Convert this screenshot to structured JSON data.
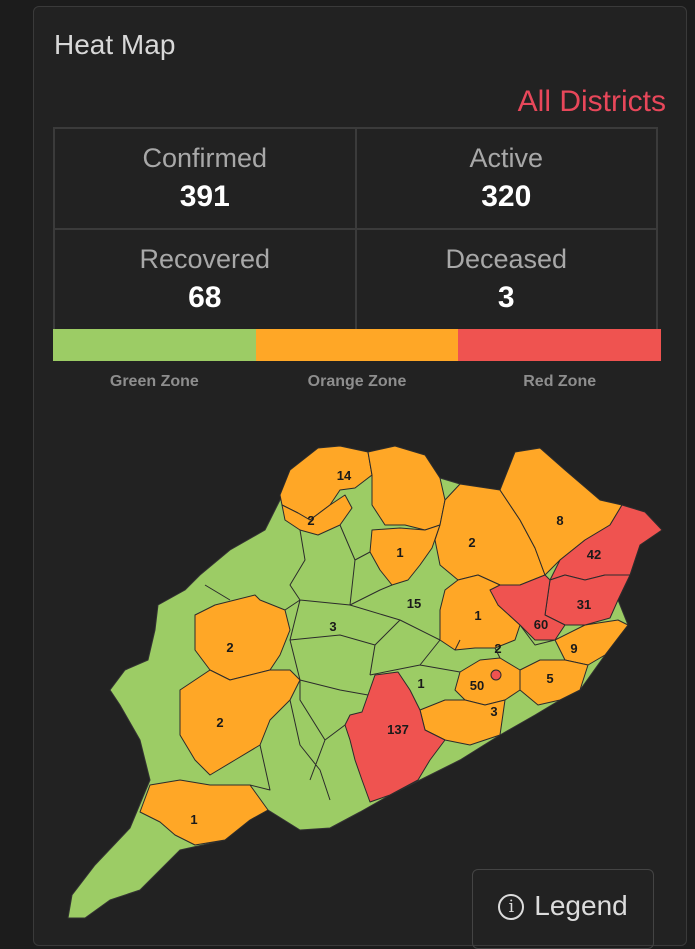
{
  "card": {
    "title": "Heat Map",
    "district_selector": "All Districts"
  },
  "stats": {
    "confirmed": {
      "label": "Confirmed",
      "value": "391"
    },
    "active": {
      "label": "Active",
      "value": "320"
    },
    "recovered": {
      "label": "Recovered",
      "value": "68"
    },
    "deceased": {
      "label": "Deceased",
      "value": "3"
    }
  },
  "zones": [
    {
      "label": "Green Zone",
      "color": "#9ccc65"
    },
    {
      "label": "Orange Zone",
      "color": "#ffa726"
    },
    {
      "label": "Red Zone",
      "color": "#ef5350"
    }
  ],
  "map": {
    "districts": [
      {
        "count": "14",
        "zone": "orange"
      },
      {
        "count": "2",
        "zone": "orange"
      },
      {
        "count": "1",
        "zone": "orange"
      },
      {
        "count": "2",
        "zone": "orange"
      },
      {
        "count": "8",
        "zone": "orange"
      },
      {
        "count": "42",
        "zone": "red"
      },
      {
        "count": "15",
        "zone": "green"
      },
      {
        "count": "3",
        "zone": "green"
      },
      {
        "count": "1",
        "zone": "orange"
      },
      {
        "count": "60",
        "zone": "red"
      },
      {
        "count": "31",
        "zone": "red"
      },
      {
        "count": "2",
        "zone": "orange"
      },
      {
        "count": "2",
        "zone": "green"
      },
      {
        "count": "9",
        "zone": "orange"
      },
      {
        "count": "1",
        "zone": "green"
      },
      {
        "count": "50",
        "zone": "orange"
      },
      {
        "count": "5",
        "zone": "orange"
      },
      {
        "count": "3",
        "zone": "orange"
      },
      {
        "count": "2",
        "zone": "orange"
      },
      {
        "count": "137",
        "zone": "red"
      },
      {
        "count": "1",
        "zone": "orange"
      }
    ]
  },
  "legend_button": {
    "label": "Legend",
    "icon": "info-icon"
  }
}
